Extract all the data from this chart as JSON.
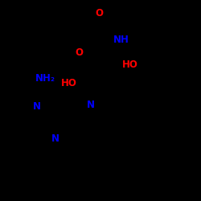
{
  "bg_color": "#000000",
  "N_color": "#0000ff",
  "O_color": "#ff0000",
  "bond_color": "#000000",
  "line_color": "#000000",
  "figsize": [
    2.5,
    2.5
  ],
  "dpi": 100,
  "xlim": [
    0,
    10
  ],
  "ylim": [
    0,
    10
  ],
  "lw": 1.4,
  "fontsize": 8.5
}
